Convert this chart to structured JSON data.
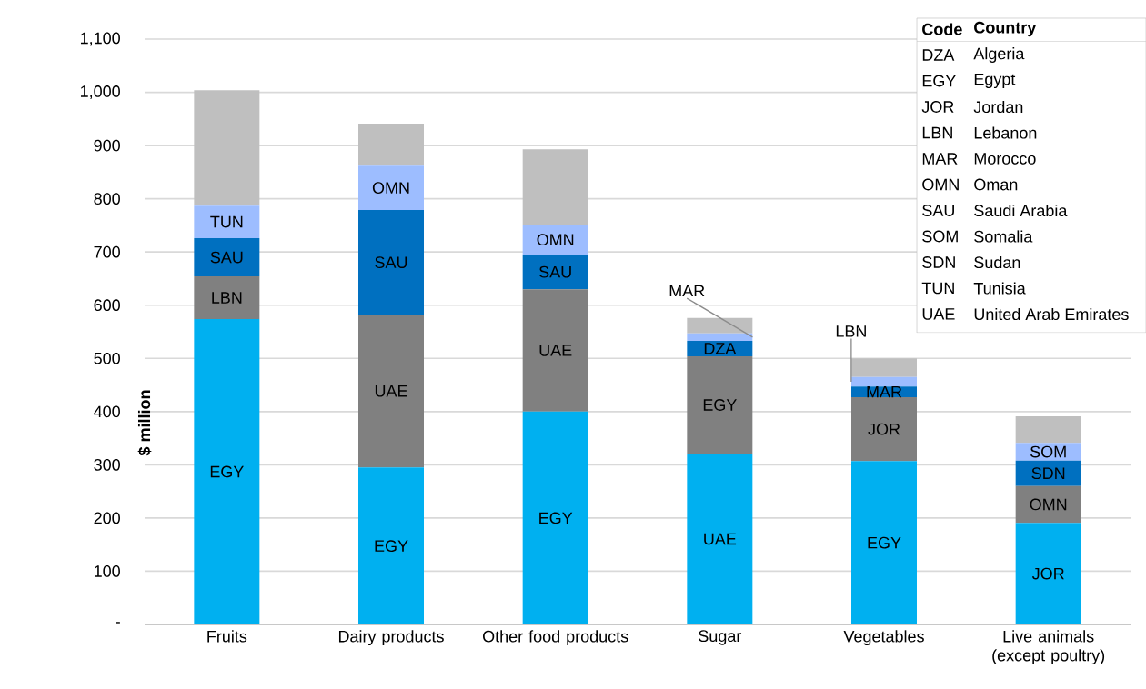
{
  "chart_data": {
    "type": "bar",
    "stacked": true,
    "ylabel": "$ million",
    "categories": [
      "Fruits",
      "Dairy products",
      "Other food products",
      "Sugar",
      "Vegetables",
      "Live animals (except poultry)"
    ],
    "series": [
      {
        "color": "#00b0f0",
        "values": [
          574,
          295,
          400,
          321,
          307,
          191
        ],
        "value_labels": [
          "EGY",
          "EGY",
          "EGY",
          "UAE",
          "EGY",
          "JOR"
        ]
      },
      {
        "color": "#808080",
        "values": [
          80,
          287,
          230,
          183,
          120,
          69
        ],
        "value_labels": [
          "LBN",
          "UAE",
          "UAE",
          "EGY",
          "JOR",
          "OMN"
        ]
      },
      {
        "color": "#0070c0",
        "values": [
          72,
          197,
          65,
          29,
          20,
          48
        ],
        "value_labels": [
          "SAU",
          "SAU",
          "SAU",
          "DZA",
          "MAR",
          "SDN"
        ]
      },
      {
        "color": "#9dbdff",
        "values": [
          61,
          83,
          56,
          14,
          18,
          33
        ],
        "value_labels": [
          "TUN",
          "OMN",
          "OMN",
          "MAR",
          "LBN",
          "SOM"
        ]
      },
      {
        "color": "#bfbfbf",
        "values": [
          217,
          79,
          142,
          29,
          35,
          50
        ],
        "value_labels": [
          null,
          null,
          null,
          null,
          null,
          null
        ]
      }
    ],
    "ylim": [
      0,
      1100
    ],
    "yticks": [
      {
        "value": 0,
        "label": "-"
      },
      100,
      200,
      300,
      400,
      500,
      600,
      700,
      800,
      900,
      {
        "value": 1000,
        "label": "1,000"
      },
      {
        "value": 1100,
        "label": "1,100"
      }
    ],
    "grid": "y",
    "annotations": [
      "Code",
      "Country",
      "DZA",
      "Algeria",
      "EGY",
      "Egypt",
      "JOR",
      "Jordan",
      "LBN",
      "Lebanon",
      "MAR",
      "Morocco",
      "OMN",
      "Oman",
      "SAU",
      "Saudi Arabia",
      "SOM",
      "Somalia",
      "SDN",
      "Sudan",
      "TUN",
      "Tunisia",
      "UAE",
      "United Arab Emirates"
    ]
  }
}
